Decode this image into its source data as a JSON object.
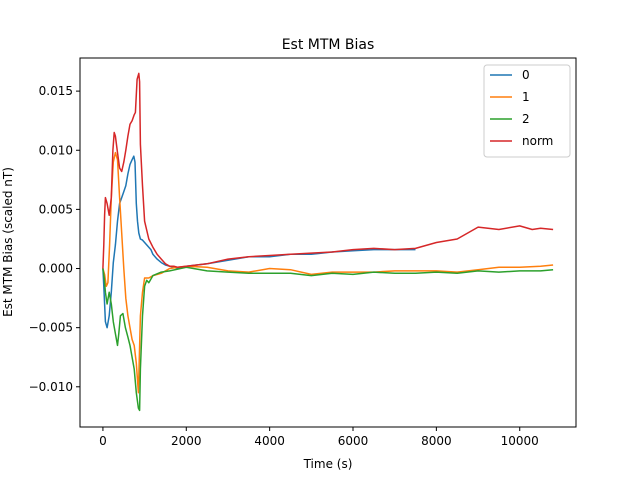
{
  "chart_data": {
    "type": "line",
    "title": "Est MTM Bias",
    "xlabel": "Time (s)",
    "ylabel": "Est MTM Bias (scaled nT)",
    "xlim": [
      -550,
      11350
    ],
    "ylim": [
      -0.0134,
      0.0178
    ],
    "xticks": [
      0,
      2000,
      4000,
      6000,
      8000,
      10000
    ],
    "xtick_labels": [
      "0",
      "2000",
      "4000",
      "6000",
      "8000",
      "10000"
    ],
    "yticks": [
      -0.01,
      -0.005,
      0.0,
      0.005,
      0.01,
      0.015
    ],
    "ytick_labels": [
      "−0.010",
      "−0.005",
      "0.000",
      "0.005",
      "0.010",
      "0.015"
    ],
    "grid": false,
    "legend_position": "top-right",
    "series": [
      {
        "name": "0",
        "color": "#1f77b4",
        "points": [
          [
            0,
            0
          ],
          [
            20,
            -0.0015
          ],
          [
            60,
            -0.0045
          ],
          [
            100,
            -0.005
          ],
          [
            150,
            -0.004
          ],
          [
            200,
            -0.002
          ],
          [
            250,
            0.0005
          ],
          [
            300,
            0.002
          ],
          [
            350,
            0.004
          ],
          [
            400,
            0.0055
          ],
          [
            450,
            0.006
          ],
          [
            500,
            0.0065
          ],
          [
            550,
            0.007
          ],
          [
            600,
            0.008
          ],
          [
            650,
            0.0088
          ],
          [
            700,
            0.0092
          ],
          [
            740,
            0.0095
          ],
          [
            770,
            0.009
          ],
          [
            800,
            0.0055
          ],
          [
            830,
            0.004
          ],
          [
            860,
            0.003
          ],
          [
            900,
            0.0025
          ],
          [
            950,
            0.0024
          ],
          [
            1000,
            0.0022
          ],
          [
            1050,
            0.002
          ],
          [
            1100,
            0.0018
          ],
          [
            1150,
            0.0016
          ],
          [
            1200,
            0.0012
          ],
          [
            1300,
            0.0008
          ],
          [
            1400,
            0.0005
          ],
          [
            1500,
            0.0003
          ],
          [
            1600,
            0.0002
          ],
          [
            1700,
            0.0001
          ],
          [
            1800,
            0
          ],
          [
            2000,
            0.0002
          ],
          [
            2500,
            0.0004
          ],
          [
            3000,
            0.0007
          ],
          [
            3500,
            0.001
          ],
          [
            4000,
            0.001
          ],
          [
            4500,
            0.0012
          ],
          [
            5000,
            0.0012
          ],
          [
            5500,
            0.0014
          ],
          [
            6000,
            0.0015
          ],
          [
            6500,
            0.0016
          ],
          [
            7000,
            0.0016
          ],
          [
            7500,
            0.0016
          ]
        ]
      },
      {
        "name": "1",
        "color": "#ff7f0e",
        "points": [
          [
            0,
            0
          ],
          [
            40,
            -0.0005
          ],
          [
            80,
            -0.0015
          ],
          [
            120,
            -0.0012
          ],
          [
            160,
            0.002
          ],
          [
            200,
            0.006
          ],
          [
            250,
            0.009
          ],
          [
            300,
            0.0098
          ],
          [
            350,
            0.0092
          ],
          [
            400,
            0.006
          ],
          [
            450,
            0.003
          ],
          [
            500,
            0
          ],
          [
            550,
            -0.0025
          ],
          [
            600,
            -0.004
          ],
          [
            650,
            -0.005
          ],
          [
            700,
            -0.006
          ],
          [
            750,
            -0.0065
          ],
          [
            800,
            -0.008
          ],
          [
            850,
            -0.0105
          ],
          [
            900,
            -0.004
          ],
          [
            950,
            -0.002
          ],
          [
            1000,
            -0.0008
          ],
          [
            1100,
            -0.0008
          ],
          [
            1200,
            -0.0006
          ],
          [
            1400,
            -0.0004
          ],
          [
            1600,
            0
          ],
          [
            1800,
            0.0001
          ],
          [
            2000,
            0.0002
          ],
          [
            2500,
            0.0001
          ],
          [
            3000,
            -0.0002
          ],
          [
            3500,
            -0.0003
          ],
          [
            4000,
            0
          ],
          [
            4500,
            -0.0001
          ],
          [
            5000,
            -0.0005
          ],
          [
            5500,
            -0.0003
          ],
          [
            6000,
            -0.0003
          ],
          [
            6500,
            -0.0003
          ],
          [
            7000,
            -0.0002
          ],
          [
            7500,
            -0.0002
          ],
          [
            8000,
            -0.0002
          ],
          [
            8500,
            -0.0003
          ],
          [
            9000,
            -0.0001
          ],
          [
            9500,
            0.0001
          ],
          [
            10000,
            0.0001
          ],
          [
            10500,
            0.0002
          ],
          [
            10800,
            0.0003
          ]
        ]
      },
      {
        "name": "2",
        "color": "#2ca02c",
        "points": [
          [
            0,
            0
          ],
          [
            30,
            -0.0008
          ],
          [
            60,
            -0.002
          ],
          [
            100,
            -0.003
          ],
          [
            150,
            -0.002
          ],
          [
            200,
            -0.003
          ],
          [
            250,
            -0.0045
          ],
          [
            300,
            -0.0055
          ],
          [
            350,
            -0.0065
          ],
          [
            380,
            -0.0055
          ],
          [
            420,
            -0.004
          ],
          [
            480,
            -0.0038
          ],
          [
            540,
            -0.005
          ],
          [
            600,
            -0.0058
          ],
          [
            650,
            -0.0065
          ],
          [
            700,
            -0.0075
          ],
          [
            750,
            -0.0085
          ],
          [
            800,
            -0.0105
          ],
          [
            850,
            -0.0118
          ],
          [
            880,
            -0.012
          ],
          [
            900,
            -0.0085
          ],
          [
            950,
            -0.004
          ],
          [
            1000,
            -0.0015
          ],
          [
            1050,
            -0.001
          ],
          [
            1100,
            -0.0012
          ],
          [
            1200,
            -0.0006
          ],
          [
            1400,
            -0.0003
          ],
          [
            1600,
            -0.0002
          ],
          [
            2000,
            0.0001
          ],
          [
            2500,
            -0.0002
          ],
          [
            3000,
            -0.0003
          ],
          [
            3500,
            -0.0004
          ],
          [
            4000,
            -0.0004
          ],
          [
            4500,
            -0.0004
          ],
          [
            5000,
            -0.0006
          ],
          [
            5500,
            -0.0004
          ],
          [
            6000,
            -0.0005
          ],
          [
            6500,
            -0.0003
          ],
          [
            7000,
            -0.0004
          ],
          [
            7500,
            -0.0004
          ],
          [
            8000,
            -0.0003
          ],
          [
            8500,
            -0.0004
          ],
          [
            9000,
            -0.0002
          ],
          [
            9500,
            -0.0003
          ],
          [
            10000,
            -0.0002
          ],
          [
            10500,
            -0.0002
          ],
          [
            10800,
            -0.0001
          ]
        ]
      },
      {
        "name": "norm",
        "color": "#d62728",
        "points": [
          [
            0,
            0
          ],
          [
            20,
            0.002
          ],
          [
            40,
            0.0045
          ],
          [
            60,
            0.006
          ],
          [
            100,
            0.0055
          ],
          [
            150,
            0.0045
          ],
          [
            200,
            0.006
          ],
          [
            240,
            0.01
          ],
          [
            270,
            0.0115
          ],
          [
            300,
            0.0112
          ],
          [
            350,
            0.0098
          ],
          [
            400,
            0.0085
          ],
          [
            450,
            0.0082
          ],
          [
            500,
            0.009
          ],
          [
            550,
            0.01
          ],
          [
            600,
            0.0112
          ],
          [
            650,
            0.0122
          ],
          [
            700,
            0.0125
          ],
          [
            750,
            0.013
          ],
          [
            780,
            0.0132
          ],
          [
            820,
            0.016
          ],
          [
            860,
            0.0165
          ],
          [
            880,
            0.0158
          ],
          [
            900,
            0.0105
          ],
          [
            950,
            0.007
          ],
          [
            1000,
            0.004
          ],
          [
            1100,
            0.0025
          ],
          [
            1200,
            0.0018
          ],
          [
            1300,
            0.0012
          ],
          [
            1400,
            0.0008
          ],
          [
            1500,
            0.0004
          ],
          [
            1600,
            0.0002
          ],
          [
            1700,
            0.0002
          ],
          [
            1800,
            0.0001
          ],
          [
            2000,
            0.0002
          ],
          [
            2500,
            0.0004
          ],
          [
            3000,
            0.0008
          ],
          [
            3500,
            0.001
          ],
          [
            4000,
            0.0011
          ],
          [
            4500,
            0.0012
          ],
          [
            5000,
            0.0013
          ],
          [
            5500,
            0.0014
          ],
          [
            6000,
            0.0016
          ],
          [
            6500,
            0.0017
          ],
          [
            7000,
            0.0016
          ],
          [
            7500,
            0.0017
          ],
          [
            8000,
            0.0022
          ],
          [
            8500,
            0.0025
          ],
          [
            9000,
            0.0035
          ],
          [
            9500,
            0.0033
          ],
          [
            10000,
            0.0036
          ],
          [
            10300,
            0.0033
          ],
          [
            10500,
            0.0034
          ],
          [
            10800,
            0.0033
          ]
        ]
      }
    ]
  }
}
